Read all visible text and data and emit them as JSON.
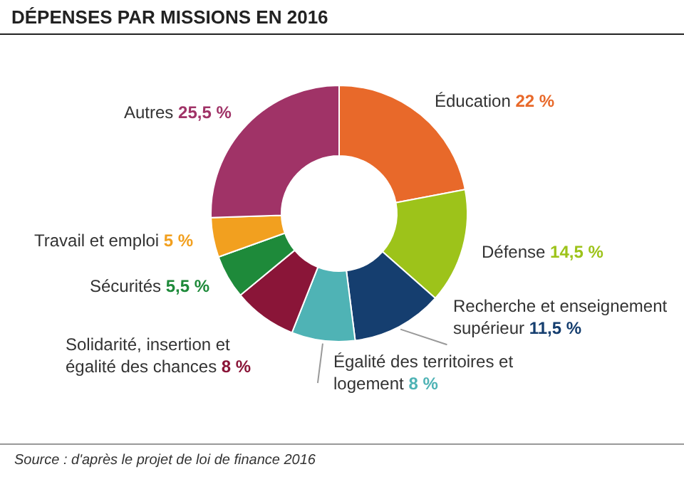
{
  "chart_data": {
    "type": "donut",
    "title": "DÉPENSES PAR MISSIONS EN 2016",
    "categories": [
      "Éducation",
      "Défense",
      "Recherche et enseignement supérieur",
      "Égalité des territoires et logement",
      "Solidarité, insertion et égalité des chances",
      "Sécurités",
      "Travail et emploi",
      "Autres"
    ],
    "values": [
      22,
      14.5,
      11.5,
      8,
      8,
      5.5,
      5,
      25.5
    ],
    "value_labels": [
      "22 %",
      "14,5 %",
      "11,5 %",
      "8 %",
      "8 %",
      "5,5 %",
      "5 %",
      "25,5 %"
    ],
    "colors": [
      "#e8692a",
      "#9dc31a",
      "#153e6f",
      "#4fb3b5",
      "#8a1538",
      "#1e8a3a",
      "#f2a01f",
      "#a03367"
    ],
    "annotations": [
      "Source : d'après le projet de loi de finance 2016"
    ],
    "legend": false
  }
}
